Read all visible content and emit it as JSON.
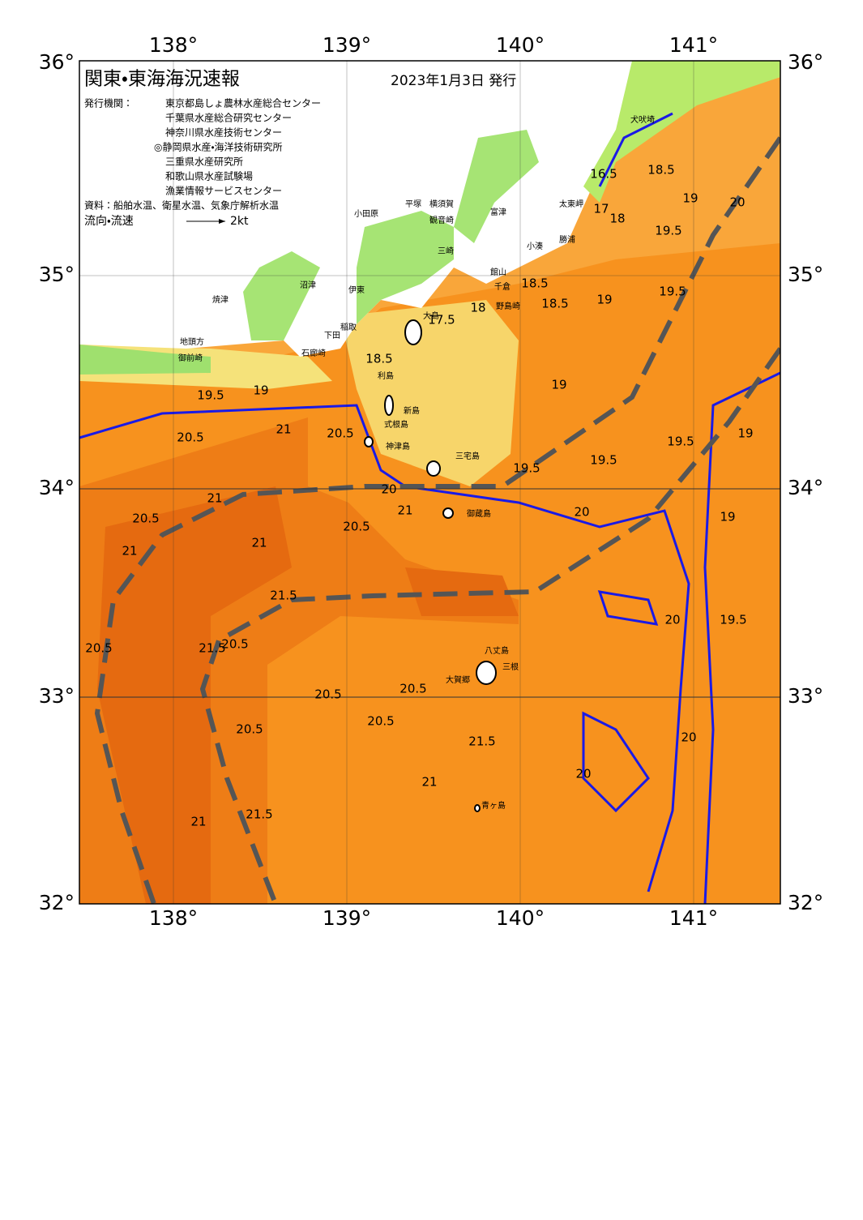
{
  "header": {
    "title": "関東・東海海況速報",
    "date": "2023年1月3日 発行",
    "issuer_label": "発行機関：",
    "issuers": [
      "東京都島しょ農林水産総合センター",
      "千葉県水産総合研究センター",
      "神奈川県水産技術センター",
      "◎静岡県水産・海洋技術研究所",
      "三重県水産研究所",
      "和歌山県水産試験場",
      "漁業情報サービスセンター"
    ],
    "source": "資料：船舶水温、衛星水温、気象庁解析水温",
    "flow_label": "流向・流速",
    "flow_scale": "2kt"
  },
  "axes": {
    "longitudes": [
      "138°",
      "139°",
      "140°",
      "141°"
    ],
    "latitudes": [
      "36°",
      "35°",
      "34°",
      "33°",
      "32°"
    ]
  },
  "places": [
    "犬吠埼",
    "太東岬",
    "勝浦",
    "小湊",
    "富津",
    "館山",
    "千倉",
    "野島崎",
    "平塚",
    "横須賀",
    "観音崎",
    "三崎",
    "小田原",
    "沼津",
    "伊東",
    "稲取",
    "下田",
    "石廊崎",
    "焼津",
    "地頭方",
    "御前崎",
    "大島",
    "利島",
    "新島",
    "式根島",
    "神津島",
    "三宅島",
    "御蔵島",
    "八丈島",
    "三根",
    "大賀郷",
    "青ヶ島"
  ],
  "contour_labels": [
    "16.5",
    "17",
    "18",
    "18.5",
    "19",
    "19.5",
    "20",
    "18.5",
    "18.5",
    "17.5",
    "18",
    "19",
    "19",
    "19.5",
    "20",
    "19.5",
    "19",
    "18.5",
    "19",
    "19.5",
    "20.5",
    "21",
    "20.5",
    "21",
    "20.5",
    "21",
    "20",
    "21",
    "20.5",
    "21",
    "21.5",
    "21.5",
    "21",
    "20.5",
    "20.5",
    "20.5",
    "20.5",
    "20.5",
    "21",
    "21.5",
    "21.5",
    "20.5",
    "20",
    "20",
    "20",
    "19.5",
    "19.5",
    "19.5",
    "19"
  ]
}
